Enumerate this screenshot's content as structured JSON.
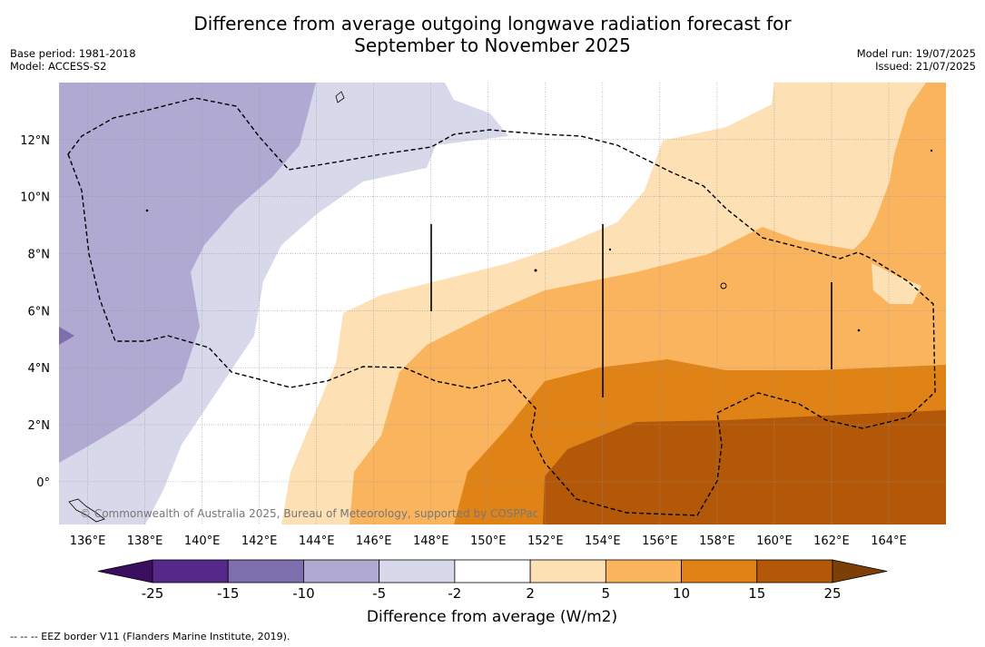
{
  "title_line1": "Difference from average outgoing longwave radiation forecast for",
  "title_line2": "September to November 2025",
  "meta_left": [
    "Base period: 1981-2018",
    "Model: ACCESS-S2"
  ],
  "meta_right": [
    "Model run: 19/07/2025",
    "Issued: 21/07/2025"
  ],
  "map": {
    "lon_range": [
      135,
      166
    ],
    "lat_range": [
      -1.5,
      14
    ],
    "lon_ticks": [
      "136°E",
      "138°E",
      "140°E",
      "142°E",
      "144°E",
      "146°E",
      "148°E",
      "150°E",
      "152°E",
      "154°E",
      "156°E",
      "158°E",
      "160°E",
      "162°E",
      "164°E"
    ],
    "lat_ticks": [
      "12°N",
      "10°N",
      "8°N",
      "6°N",
      "4°N",
      "2°N",
      "0°"
    ],
    "gridlines": true,
    "copyright": "© Commonwealth of Australia 2025, Bureau of Meteorology, supported by COSPPac"
  },
  "colorbar": {
    "labels": [
      "-25",
      "-15",
      "-10",
      "-5",
      "-2",
      "2",
      "5",
      "10",
      "15",
      "25"
    ],
    "colors": [
      "#3a0f60",
      "#55288a",
      "#7d6fae",
      "#b0a9d2",
      "#d8d8eb",
      "#ffffff",
      "#fde0b4",
      "#fbb45e",
      "#e08317",
      "#b25808",
      "#7d3f06"
    ],
    "title": "Difference from average (W/m2)"
  },
  "footnote": "-- -- -- EEZ border V11 (Flanders Marine Institute, 2019)."
}
